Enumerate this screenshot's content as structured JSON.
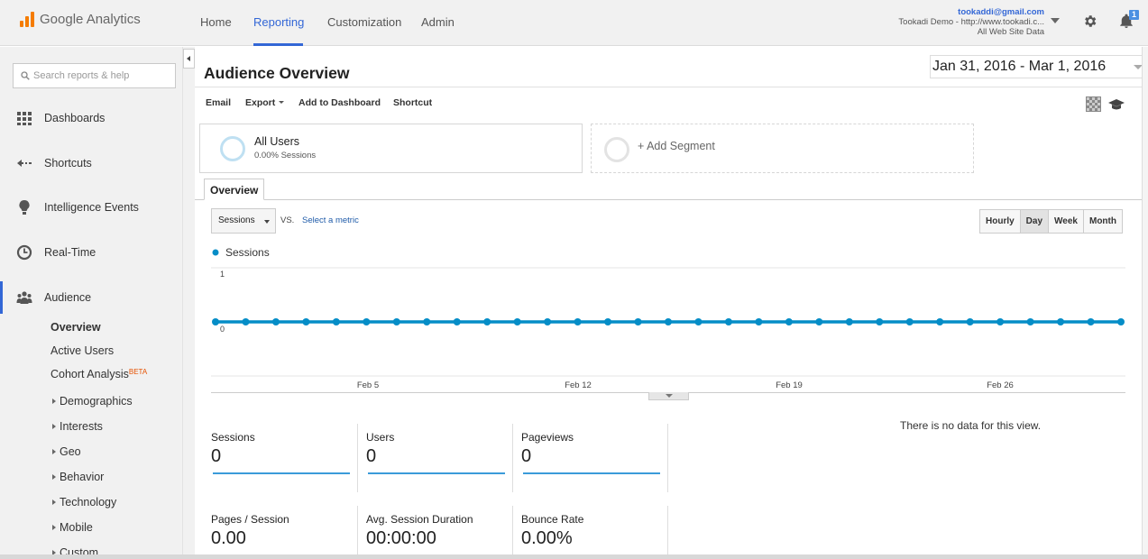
{
  "app": {
    "name": "Google Analytics"
  },
  "nav": {
    "home": "Home",
    "reporting": "Reporting",
    "customization": "Customization",
    "admin": "Admin"
  },
  "account": {
    "email": "tookaddi@gmail.com",
    "property": "Tookadi Demo - http://www.tookadi.c...",
    "view": "All Web Site Data",
    "notifications": "1"
  },
  "sidebar": {
    "search_placeholder": "Search reports & help",
    "items": [
      {
        "label": "Dashboards",
        "icon": "grid-icon"
      },
      {
        "label": "Shortcuts",
        "icon": "arrow-left-icon"
      },
      {
        "label": "Intelligence Events",
        "icon": "lightbulb-icon"
      },
      {
        "label": "Real-Time",
        "icon": "clock-icon"
      },
      {
        "label": "Audience",
        "icon": "people-icon"
      }
    ],
    "audience_sub": {
      "overview": "Overview",
      "active_users": "Active Users",
      "cohort": "Cohort Analysis",
      "beta": "BETA",
      "demographics": "Demographics",
      "interests": "Interests",
      "geo": "Geo",
      "behavior": "Behavior",
      "technology": "Technology",
      "mobile": "Mobile",
      "custom": "Custom"
    }
  },
  "page": {
    "title": "Audience Overview",
    "date_start": "Jan 31, 2016",
    "date_sep": " - ",
    "date_end": "Mar 1, 2016"
  },
  "toolbar": {
    "email": "Email",
    "export": "Export",
    "add_dashboard": "Add to Dashboard",
    "shortcut": "Shortcut"
  },
  "segments": {
    "all_users": "All Users",
    "all_users_pct": "0.00% Sessions",
    "add_segment": "+ Add Segment"
  },
  "tabs": {
    "overview": "Overview"
  },
  "chart_controls": {
    "metric": "Sessions",
    "vs": "VS.",
    "select_metric": "Select a metric",
    "granularity": [
      "Hourly",
      "Day",
      "Week",
      "Month"
    ],
    "selected_granularity": "Day"
  },
  "chart_data": {
    "type": "line",
    "series": [
      {
        "name": "Sessions",
        "color": "#058dc7",
        "values": [
          0,
          0,
          0,
          0,
          0,
          0,
          0,
          0,
          0,
          0,
          0,
          0,
          0,
          0,
          0,
          0,
          0,
          0,
          0,
          0,
          0,
          0,
          0,
          0,
          0,
          0,
          0,
          0,
          0,
          0,
          0
        ]
      }
    ],
    "x_ticks": [
      "Feb 5",
      "Feb 12",
      "Feb 19",
      "Feb 26"
    ],
    "y_ticks": [
      "1",
      "0"
    ],
    "ylim": [
      0,
      1
    ],
    "legend_placement": "top-left"
  },
  "stats": [
    {
      "label": "Sessions",
      "value": "0"
    },
    {
      "label": "Users",
      "value": "0"
    },
    {
      "label": "Pageviews",
      "value": "0"
    },
    {
      "label": "Pages / Session",
      "value": "0.00"
    },
    {
      "label": "Avg. Session Duration",
      "value": "00:00:00"
    },
    {
      "label": "Bounce Rate",
      "value": "0.00%"
    }
  ],
  "no_data": "There is no data for this view."
}
